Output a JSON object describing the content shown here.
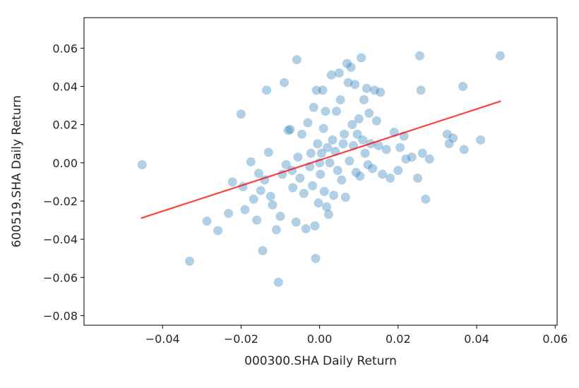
{
  "chart_data": {
    "type": "scatter",
    "title": "",
    "xlabel": "000300.SHA Daily Return",
    "ylabel": "600519.SHA Daily Return",
    "xlim": [
      -0.06,
      0.0605
    ],
    "ylim": [
      -0.085,
      0.076
    ],
    "xticks": [
      -0.04,
      -0.02,
      0.0,
      0.02,
      0.04,
      0.06
    ],
    "xtick_labels": [
      "−0.04",
      "−0.02",
      "0.00",
      "0.02",
      "0.04",
      "0.06"
    ],
    "yticks": [
      -0.08,
      -0.06,
      -0.04,
      -0.02,
      0.0,
      0.02,
      0.04,
      0.06
    ],
    "ytick_labels": [
      "−0.08",
      "−0.06",
      "−0.04",
      "−0.02",
      "0.00",
      "0.02",
      "0.04",
      "0.06"
    ],
    "grid": false,
    "legend": "none",
    "colors": {
      "points": "#1f77b4",
      "fit_line": "#ff0000"
    },
    "series": [
      {
        "kind": "points",
        "points": [
          [
            -0.0452,
            -0.001
          ],
          [
            -0.0331,
            -0.0515
          ],
          [
            -0.0287,
            -0.0305
          ],
          [
            -0.0259,
            -0.0355
          ],
          [
            -0.0232,
            -0.0265
          ],
          [
            -0.0222,
            -0.01
          ],
          [
            -0.02,
            0.0255
          ],
          [
            -0.0195,
            -0.0125
          ],
          [
            -0.019,
            -0.0245
          ],
          [
            -0.0175,
            0.0005
          ],
          [
            -0.0168,
            -0.019
          ],
          [
            -0.016,
            -0.03
          ],
          [
            -0.0155,
            -0.0055
          ],
          [
            -0.015,
            -0.0145
          ],
          [
            -0.0145,
            -0.046
          ],
          [
            -0.014,
            -0.009
          ],
          [
            -0.0135,
            0.038
          ],
          [
            -0.013,
            0.0055
          ],
          [
            -0.0125,
            -0.0175
          ],
          [
            -0.012,
            -0.022
          ],
          [
            -0.011,
            -0.035
          ],
          [
            -0.0105,
            -0.0625
          ],
          [
            -0.01,
            -0.028
          ],
          [
            -0.0095,
            -0.006
          ],
          [
            -0.009,
            0.042
          ],
          [
            -0.0085,
            -0.001
          ],
          [
            -0.008,
            0.017
          ],
          [
            -0.0075,
            0.0175
          ],
          [
            -0.007,
            -0.004
          ],
          [
            -0.0068,
            -0.013
          ],
          [
            -0.006,
            -0.031
          ],
          [
            -0.0058,
            0.054
          ],
          [
            -0.0055,
            0.003
          ],
          [
            -0.005,
            -0.008
          ],
          [
            -0.0045,
            0.015
          ],
          [
            -0.004,
            -0.016
          ],
          [
            -0.0035,
            -0.0345
          ],
          [
            -0.003,
            0.021
          ],
          [
            -0.0025,
            -0.002
          ],
          [
            -0.0022,
            0.005
          ],
          [
            -0.0018,
            -0.012
          ],
          [
            -0.0015,
            0.029
          ],
          [
            -0.0012,
            -0.033
          ],
          [
            -0.001,
            -0.05
          ],
          [
            -0.0008,
            0.038
          ],
          [
            -0.0005,
            0.01
          ],
          [
            -0.0003,
            -0.021
          ],
          [
            0.0,
            0.0
          ],
          [
            0.0002,
            -0.006
          ],
          [
            0.0005,
            0.005
          ],
          [
            0.0008,
            0.038
          ],
          [
            0.001,
            0.018
          ],
          [
            0.0012,
            -0.015
          ],
          [
            0.0015,
            0.027
          ],
          [
            0.0018,
            -0.023
          ],
          [
            0.002,
            0.008
          ],
          [
            0.0023,
            -0.027
          ],
          [
            0.0026,
            0.0
          ],
          [
            0.003,
            0.046
          ],
          [
            0.0033,
            0.012
          ],
          [
            0.0036,
            -0.017
          ],
          [
            0.004,
            0.006
          ],
          [
            0.0043,
            0.027
          ],
          [
            0.0046,
            -0.004
          ],
          [
            0.005,
            0.047
          ],
          [
            0.0053,
            0.033
          ],
          [
            0.0056,
            -0.009
          ],
          [
            0.006,
            0.01
          ],
          [
            0.0063,
            0.015
          ],
          [
            0.0066,
            -0.018
          ],
          [
            0.007,
            0.052
          ],
          [
            0.0073,
            0.042
          ],
          [
            0.0076,
            0.001
          ],
          [
            0.008,
            0.05
          ],
          [
            0.0083,
            0.02
          ],
          [
            0.0086,
            0.009
          ],
          [
            0.009,
            0.041
          ],
          [
            0.0093,
            -0.005
          ],
          [
            0.0096,
            0.015
          ],
          [
            0.01,
            0.023
          ],
          [
            0.0103,
            -0.007
          ],
          [
            0.0106,
            0.055
          ],
          [
            0.011,
            0.012
          ],
          [
            0.0113,
            0.033
          ],
          [
            0.0116,
            0.005
          ],
          [
            0.012,
            0.039
          ],
          [
            0.0123,
            -0.001
          ],
          [
            0.0126,
            0.026
          ],
          [
            0.013,
            0.01
          ],
          [
            0.0135,
            -0.003
          ],
          [
            0.014,
            0.038
          ],
          [
            0.0145,
            0.022
          ],
          [
            0.015,
            0.009
          ],
          [
            0.0155,
            0.037
          ],
          [
            0.016,
            -0.006
          ],
          [
            0.017,
            0.007
          ],
          [
            0.018,
            -0.008
          ],
          [
            0.019,
            0.016
          ],
          [
            0.02,
            -0.004
          ],
          [
            0.0205,
            0.008
          ],
          [
            0.0215,
            0.014
          ],
          [
            0.022,
            0.002
          ],
          [
            0.0235,
            0.003
          ],
          [
            0.025,
            -0.008
          ],
          [
            0.0255,
            0.056
          ],
          [
            0.0258,
            0.038
          ],
          [
            0.0262,
            0.005
          ],
          [
            0.027,
            -0.019
          ],
          [
            0.028,
            0.002
          ],
          [
            0.0325,
            0.015
          ],
          [
            0.033,
            0.01
          ],
          [
            0.034,
            0.013
          ],
          [
            0.0365,
            0.04
          ],
          [
            0.0368,
            0.007
          ],
          [
            0.041,
            0.012
          ],
          [
            0.046,
            0.056
          ]
        ]
      },
      {
        "kind": "line",
        "points": [
          [
            -0.0455,
            -0.029
          ],
          [
            0.0462,
            0.0323
          ]
        ]
      }
    ]
  }
}
